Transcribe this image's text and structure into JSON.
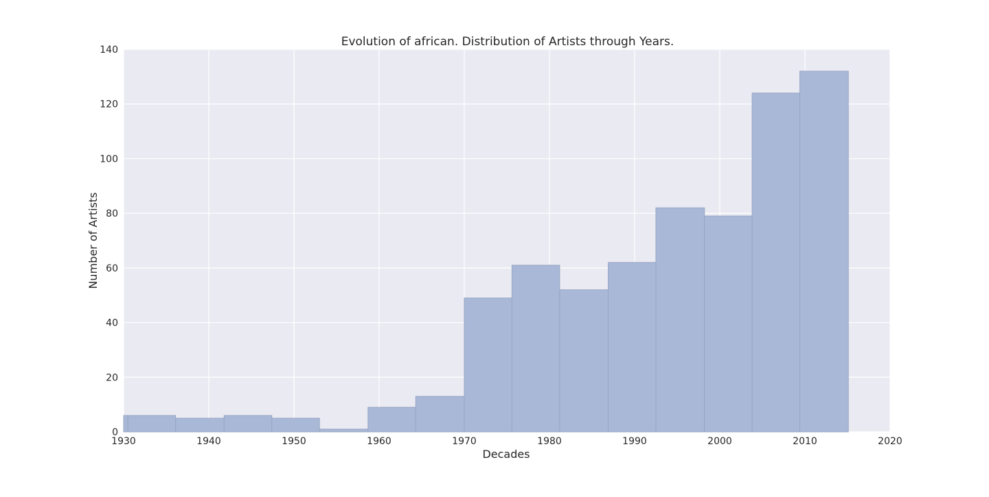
{
  "chart_data": {
    "type": "bar",
    "title": "Evolution of african. Distribution of Artists through Years.",
    "xlabel": "Decades",
    "ylabel": "Number of Artists",
    "xlim": [
      1930,
      2020
    ],
    "ylim": [
      0,
      140
    ],
    "xticks": [
      "1930",
      "1940",
      "1950",
      "1960",
      "1970",
      "1980",
      "1990",
      "2000",
      "2010",
      "2020"
    ],
    "yticks": [
      "0",
      "20",
      "40",
      "60",
      "80",
      "100",
      "120",
      "140"
    ],
    "bins": [
      {
        "start": 1930,
        "end": 1930.5,
        "count": 6
      },
      {
        "start": 1930.5,
        "end": 1936.1,
        "count": 6
      },
      {
        "start": 1936.1,
        "end": 1941.8,
        "count": 5
      },
      {
        "start": 1941.8,
        "end": 1947.4,
        "count": 6
      },
      {
        "start": 1947.4,
        "end": 1953.0,
        "count": 5
      },
      {
        "start": 1953.0,
        "end": 1958.7,
        "count": 1
      },
      {
        "start": 1958.7,
        "end": 1964.3,
        "count": 9
      },
      {
        "start": 1964.3,
        "end": 1970.0,
        "count": 13
      },
      {
        "start": 1970.0,
        "end": 1975.6,
        "count": 49
      },
      {
        "start": 1975.6,
        "end": 1981.2,
        "count": 61
      },
      {
        "start": 1981.2,
        "end": 1986.9,
        "count": 52
      },
      {
        "start": 1986.9,
        "end": 1992.5,
        "count": 62
      },
      {
        "start": 1992.5,
        "end": 1998.2,
        "count": 82
      },
      {
        "start": 1998.2,
        "end": 2003.8,
        "count": 79
      },
      {
        "start": 2003.8,
        "end": 2009.4,
        "count": 124
      },
      {
        "start": 2009.4,
        "end": 2015.1,
        "count": 132
      }
    ],
    "grid": true,
    "colors": {
      "plot_background": "#eaeaf2",
      "grid": "#ffffff",
      "bar_fill": "#a9b8d6",
      "bar_edge": "#97a6c4"
    }
  }
}
